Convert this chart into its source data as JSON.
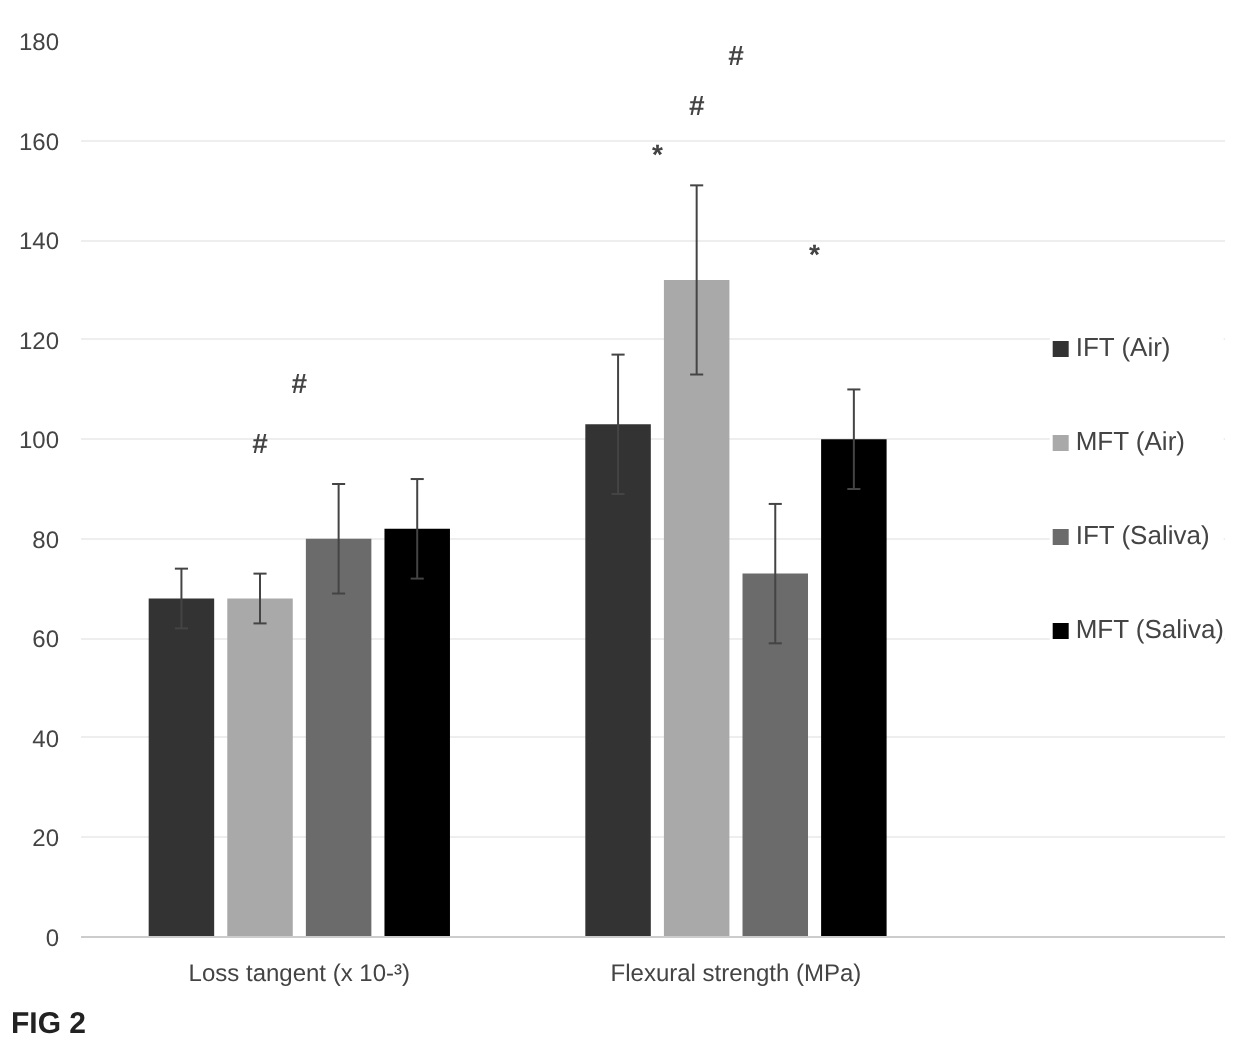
{
  "chart_data": {
    "type": "bar",
    "categories": [
      "Loss tangent (x 10-³)",
      "Flexural strength (MPa)"
    ],
    "series": [
      {
        "name": "IFT (Air)",
        "color": "#333333",
        "values": [
          68,
          103
        ],
        "errors": [
          6,
          14
        ]
      },
      {
        "name": "MFT (Air)",
        "color": "#a9a9a9",
        "values": [
          68,
          132
        ],
        "errors": [
          5,
          19
        ]
      },
      {
        "name": "IFT (Saliva)",
        "color": "#6b6b6b",
        "values": [
          80,
          73
        ],
        "errors": [
          11,
          14
        ]
      },
      {
        "name": "MFT (Saliva)",
        "color": "#000000",
        "values": [
          82,
          100
        ],
        "errors": [
          10,
          10
        ]
      }
    ],
    "ylim": [
      0,
      180
    ],
    "yticks": [
      0,
      20,
      40,
      60,
      80,
      100,
      120,
      140,
      160,
      180
    ],
    "grid": "y",
    "legend": "right",
    "annotations": [
      "#",
      "#",
      "*",
      "#",
      "#",
      "*",
      "FIG 2"
    ]
  }
}
